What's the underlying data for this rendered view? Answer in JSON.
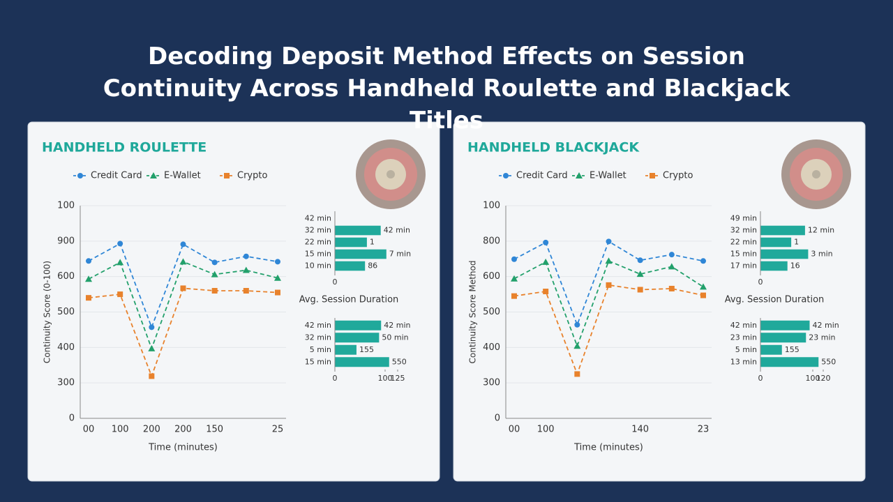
{
  "title": "Decoding Deposit Method Effects on Session Continuity Across Handheld Roulette and Blackjack Titles",
  "chart_data": [
    {
      "type": "line",
      "title": "HANDHELD ROULETTE",
      "x_label": "Time (minutes)",
      "y_label": "Continuity Score (0-100)",
      "categories": [
        "00",
        "100",
        "200",
        "200",
        "150",
        null,
        "25"
      ],
      "series": [
        {
          "name": "Credit Card",
          "color": "#2f86d6",
          "values": [
            444,
            493,
            257,
            491,
            440,
            457,
            442
          ]
        },
        {
          "name": "E-Wallet",
          "color": "#22a06b",
          "values": [
            393,
            440,
            197,
            442,
            406,
            418,
            396
          ]
        },
        {
          "name": "Crypto",
          "color": "#e8822c",
          "values": [
            340,
            350,
            119,
            367,
            360,
            360,
            355
          ]
        }
      ],
      "ylim": [
        0,
        600
      ],
      "yticks": [
        0,
        {
          "value": 100,
          "label": "300"
        },
        {
          "value": 200,
          "label": "400"
        },
        {
          "value": 300,
          "label": "500"
        },
        {
          "value": 400,
          "label": "600"
        },
        {
          "value": 500,
          "label": "900"
        },
        {
          "value": 600,
          "label": "100"
        }
      ],
      "grid": true,
      "legend": "top"
    },
    {
      "type": "barh",
      "categories": [
        "42 min",
        "32 min",
        "22 min",
        "15 min",
        "10 min"
      ],
      "values": [
        null,
        73,
        51,
        82,
        48
      ],
      "bar_labels": [
        null,
        "42 min",
        "1",
        "7 min",
        "86"
      ],
      "color": "#20a99b",
      "xlim": [
        0,
        100
      ],
      "xticks": [
        0
      ]
    },
    {
      "type": "barh",
      "title": "Avg. Session Duration",
      "categories": [
        "42 min",
        "32 min",
        "5 min",
        "15 min"
      ],
      "values": [
        92,
        88,
        43,
        108
      ],
      "bar_labels": [
        "42 min",
        "50 min",
        "155",
        "550"
      ],
      "color": "#20a99b",
      "xlim": [
        0,
        125
      ],
      "xticks": [
        0,
        100,
        125
      ]
    },
    {
      "type": "line",
      "title": "HANDHELD BLACKJACK",
      "x_label": "Time (minutes)",
      "y_label": "Continuity Score Method",
      "categories": [
        "00",
        "100",
        null,
        null,
        "140",
        null,
        "23"
      ],
      "series": [
        {
          "name": "Credit Card",
          "color": "#2f86d6",
          "values": [
            449,
            496,
            264,
            499,
            446,
            462,
            444
          ]
        },
        {
          "name": "E-Wallet",
          "color": "#22a06b",
          "values": [
            394,
            441,
            204,
            444,
            407,
            428,
            371
          ]
        },
        {
          "name": "Crypto",
          "color": "#e8822c",
          "values": [
            345,
            358,
            125,
            376,
            363,
            366,
            347
          ]
        }
      ],
      "ylim": [
        0,
        600
      ],
      "yticks": [
        0,
        {
          "value": 100,
          "label": "300"
        },
        {
          "value": 200,
          "label": "400"
        },
        {
          "value": 300,
          "label": "500"
        },
        {
          "value": 400,
          "label": "600"
        },
        {
          "value": 500,
          "label": "800"
        },
        {
          "value": 600,
          "label": "100"
        }
      ],
      "grid": true,
      "legend": "top"
    },
    {
      "type": "barh",
      "categories": [
        "49 min",
        "32 min",
        "22 min",
        "15 min",
        "17 min"
      ],
      "values": [
        null,
        71,
        49,
        76,
        43
      ],
      "bar_labels": [
        null,
        "12 min",
        "1",
        "3 min",
        "16"
      ],
      "color": "#20a99b",
      "xlim": [
        0,
        100
      ],
      "xticks": [
        0
      ]
    },
    {
      "type": "barh",
      "title": "Avg. Session Duration",
      "categories": [
        "42 min",
        "23 min",
        "5 min",
        "13 min"
      ],
      "values": [
        94,
        87,
        41,
        111
      ],
      "bar_labels": [
        "42 min",
        "23 min",
        "155",
        "550"
      ],
      "color": "#20a99b",
      "xlim": [
        0,
        120
      ],
      "xticks": [
        0,
        100,
        120
      ]
    }
  ]
}
